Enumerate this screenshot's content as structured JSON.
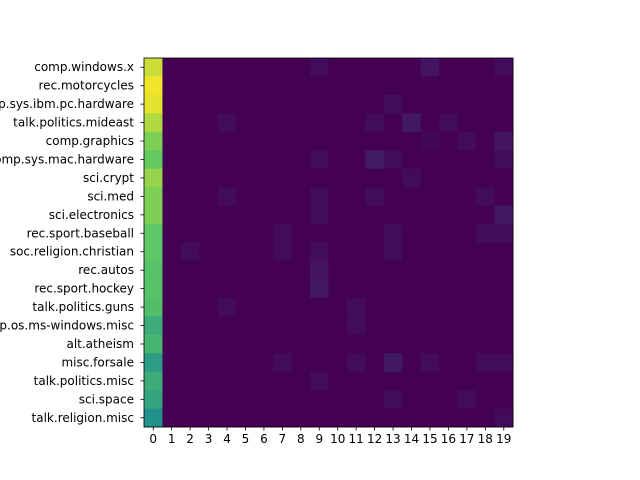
{
  "chart_data": {
    "type": "heatmap",
    "title": "",
    "xlabel": "",
    "ylabel": "",
    "colormap": "viridis",
    "value_range": [
      0,
      1
    ],
    "x_categories": [
      "0",
      "1",
      "2",
      "3",
      "4",
      "5",
      "6",
      "7",
      "8",
      "9",
      "10",
      "11",
      "12",
      "13",
      "14",
      "15",
      "16",
      "17",
      "18",
      "19"
    ],
    "y_categories": [
      "comp.windows.x",
      "rec.motorcycles",
      "comp.sys.ibm.pc.hardware",
      "talk.politics.mideast",
      "comp.graphics",
      "comp.sys.mac.hardware",
      "sci.crypt",
      "sci.med",
      "sci.electronics",
      "rec.sport.baseball",
      "soc.religion.christian",
      "rec.autos",
      "rec.sport.hockey",
      "talk.politics.guns",
      "comp.os.ms-windows.misc",
      "alt.atheism",
      "misc.forsale",
      "talk.politics.misc",
      "sci.space",
      "talk.religion.misc"
    ],
    "values": [
      [
        0.92,
        0,
        0,
        0,
        0,
        0,
        0,
        0,
        0,
        0.03,
        0,
        0,
        0,
        0,
        0,
        0.06,
        0,
        0,
        0,
        0.03
      ],
      [
        0.98,
        0,
        0,
        0,
        0,
        0,
        0,
        0,
        0,
        0,
        0,
        0,
        0,
        0,
        0,
        0,
        0,
        0,
        0,
        0
      ],
      [
        0.96,
        0,
        0,
        0,
        0,
        0,
        0,
        0,
        0,
        0,
        0,
        0,
        0,
        0.03,
        0,
        0,
        0,
        0,
        0,
        0
      ],
      [
        0.88,
        0,
        0,
        0,
        0.03,
        0,
        0,
        0,
        0,
        0,
        0,
        0,
        0.03,
        0,
        0.07,
        0,
        0.03,
        0,
        0,
        0
      ],
      [
        0.8,
        0,
        0,
        0,
        0,
        0,
        0,
        0,
        0,
        0,
        0,
        0,
        0,
        0,
        0,
        0.02,
        0,
        0.03,
        0,
        0.06
      ],
      [
        0.76,
        0,
        0,
        0,
        0,
        0,
        0,
        0,
        0,
        0.03,
        0,
        0,
        0.08,
        0.03,
        0,
        0,
        0,
        0,
        0,
        0.03
      ],
      [
        0.84,
        0,
        0,
        0,
        0,
        0,
        0,
        0,
        0,
        0,
        0,
        0,
        0,
        0,
        0.03,
        0,
        0,
        0,
        0,
        0
      ],
      [
        0.8,
        0,
        0,
        0,
        0.03,
        0,
        0,
        0,
        0,
        0.03,
        0,
        0,
        0.03,
        0,
        0,
        0,
        0,
        0,
        0.03,
        0
      ],
      [
        0.8,
        0,
        0,
        0,
        0,
        0,
        0,
        0,
        0,
        0.03,
        0,
        0,
        0,
        0,
        0,
        0,
        0,
        0,
        0,
        0.07
      ],
      [
        0.74,
        0,
        0,
        0,
        0,
        0,
        0,
        0.03,
        0,
        0,
        0,
        0,
        0,
        0.03,
        0,
        0,
        0,
        0,
        0.03,
        0.03
      ],
      [
        0.74,
        0,
        0.03,
        0,
        0,
        0,
        0,
        0.03,
        0,
        0.03,
        0,
        0,
        0,
        0.03,
        0,
        0,
        0,
        0,
        0,
        0
      ],
      [
        0.72,
        0,
        0,
        0,
        0,
        0,
        0,
        0,
        0,
        0.06,
        0,
        0,
        0,
        0,
        0,
        0,
        0,
        0,
        0,
        0
      ],
      [
        0.72,
        0,
        0,
        0,
        0,
        0,
        0,
        0,
        0,
        0.07,
        0,
        0,
        0,
        0,
        0,
        0,
        0,
        0,
        0,
        0
      ],
      [
        0.7,
        0,
        0,
        0,
        0.03,
        0,
        0,
        0,
        0,
        0,
        0,
        0.03,
        0,
        0,
        0,
        0,
        0,
        0,
        0,
        0
      ],
      [
        0.62,
        0,
        0,
        0,
        0,
        0,
        0,
        0,
        0,
        0,
        0,
        0.03,
        0,
        0,
        0,
        0,
        0,
        0,
        0,
        0
      ],
      [
        0.66,
        0,
        0,
        0,
        0,
        0,
        0,
        0,
        0,
        0,
        0,
        0,
        0,
        0,
        0,
        0,
        0,
        0,
        0,
        0
      ],
      [
        0.55,
        0,
        0,
        0,
        0,
        0,
        0,
        0.03,
        0,
        0,
        0,
        0.03,
        0,
        0.07,
        0,
        0.03,
        0,
        0,
        0.03,
        0.03
      ],
      [
        0.62,
        0,
        0,
        0,
        0,
        0,
        0,
        0,
        0,
        0.03,
        0,
        0,
        0,
        0,
        0,
        0,
        0,
        0,
        0,
        0
      ],
      [
        0.58,
        0,
        0,
        0,
        0,
        0,
        0,
        0,
        0,
        0,
        0,
        0,
        0,
        0.03,
        0,
        0,
        0,
        0.03,
        0,
        0
      ],
      [
        0.5,
        0,
        0,
        0,
        0,
        0,
        0,
        0,
        0,
        0,
        0,
        0,
        0,
        0,
        0,
        0,
        0,
        0,
        0,
        0.03
      ]
    ]
  }
}
